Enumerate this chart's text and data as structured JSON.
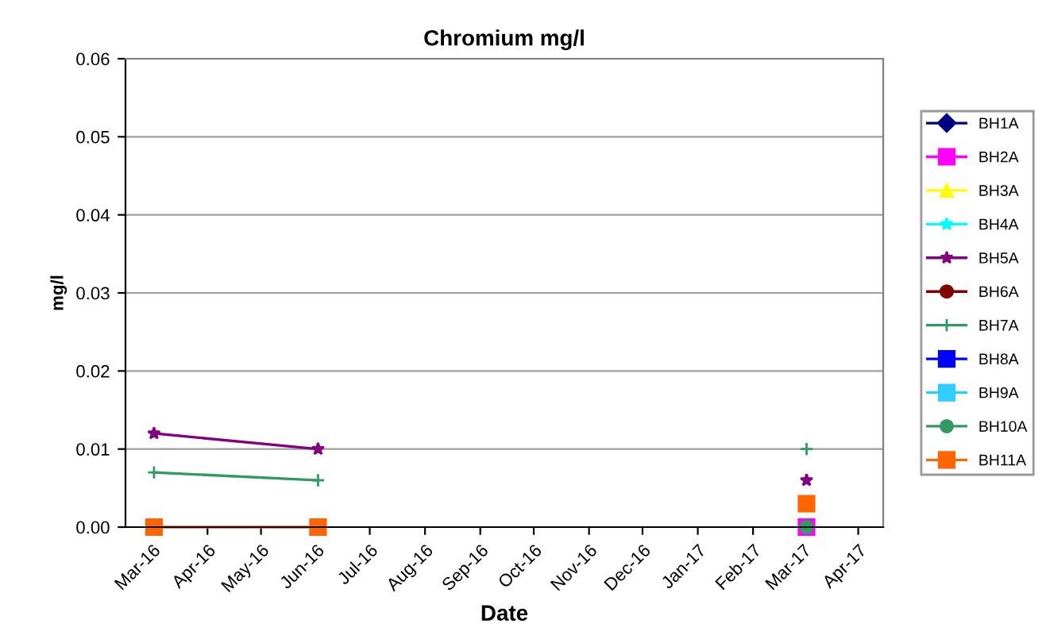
{
  "chart_data": {
    "type": "line",
    "title": "Chromium mg/l",
    "xlabel": "Date",
    "ylabel": "mg/l",
    "x": [
      "2016-03-02",
      "2016-06-02",
      "2016-09-01",
      "2017-03-03"
    ],
    "xlim": [
      "2016-02-15",
      "2017-04-15"
    ],
    "xticks": [
      {
        "value": "2016-03-01",
        "label": "Mar-16"
      },
      {
        "value": "2016-04-01",
        "label": "Apr-16"
      },
      {
        "value": "2016-05-01",
        "label": "May-16"
      },
      {
        "value": "2016-06-01",
        "label": "Jun-16"
      },
      {
        "value": "2016-07-01",
        "label": "Jul-16"
      },
      {
        "value": "2016-08-01",
        "label": "Aug-16"
      },
      {
        "value": "2016-09-01",
        "label": "Sep-16"
      },
      {
        "value": "2016-10-01",
        "label": "Oct-16"
      },
      {
        "value": "2016-11-01",
        "label": "Nov-16"
      },
      {
        "value": "2016-12-01",
        "label": "Dec-16"
      },
      {
        "value": "2017-01-01",
        "label": "Jan-17"
      },
      {
        "value": "2017-02-01",
        "label": "Feb-17"
      },
      {
        "value": "2017-03-01",
        "label": "Mar-17"
      },
      {
        "value": "2017-04-01",
        "label": "Apr-17"
      }
    ],
    "ylim": [
      0,
      0.06
    ],
    "yticks": [
      {
        "value": 0,
        "label": "0.00"
      },
      {
        "value": 0.01,
        "label": "0.01"
      },
      {
        "value": 0.02,
        "label": "0.02"
      },
      {
        "value": 0.03,
        "label": "0.03"
      },
      {
        "value": 0.04,
        "label": "0.04"
      },
      {
        "value": 0.05,
        "label": "0.05"
      },
      {
        "value": 0.06,
        "label": "0.06"
      }
    ],
    "grid": "y",
    "legend": "right",
    "line_style": "solid",
    "series": [
      {
        "name": "BH1A",
        "color": "#000080",
        "marker": "diamond",
        "values": [
          null,
          null,
          null,
          null
        ]
      },
      {
        "name": "BH2A",
        "color": "#ff00ff",
        "marker": "square",
        "values": [
          null,
          null,
          null,
          0
        ]
      },
      {
        "name": "BH3A",
        "color": "#ffff00",
        "marker": "triangle",
        "values": [
          null,
          null,
          null,
          null
        ]
      },
      {
        "name": "BH4A",
        "color": "#00ffff",
        "marker": "star",
        "values": [
          null,
          null,
          null,
          null
        ]
      },
      {
        "name": "BH5A",
        "color": "#800080",
        "marker": "star",
        "values": [
          0.012,
          0.01,
          null,
          0.006
        ]
      },
      {
        "name": "BH6A",
        "color": "#800000",
        "marker": "circle",
        "values": [
          null,
          null,
          null,
          null
        ]
      },
      {
        "name": "BH7A",
        "color": "#339966",
        "marker": "cross",
        "values": [
          0.007,
          0.006,
          null,
          0.01
        ]
      },
      {
        "name": "BH8A",
        "color": "#0000ff",
        "marker": "square",
        "values": [
          null,
          null,
          null,
          null
        ]
      },
      {
        "name": "BH9A",
        "color": "#33ccff",
        "marker": "square",
        "values": [
          null,
          null,
          null,
          null
        ]
      },
      {
        "name": "BH10A",
        "color": "#339966",
        "marker": "circle",
        "values": [
          null,
          null,
          null,
          0
        ]
      },
      {
        "name": "BH11A",
        "color": "#ff6600",
        "marker": "square",
        "values": [
          0,
          0,
          null,
          0.003
        ]
      }
    ]
  }
}
